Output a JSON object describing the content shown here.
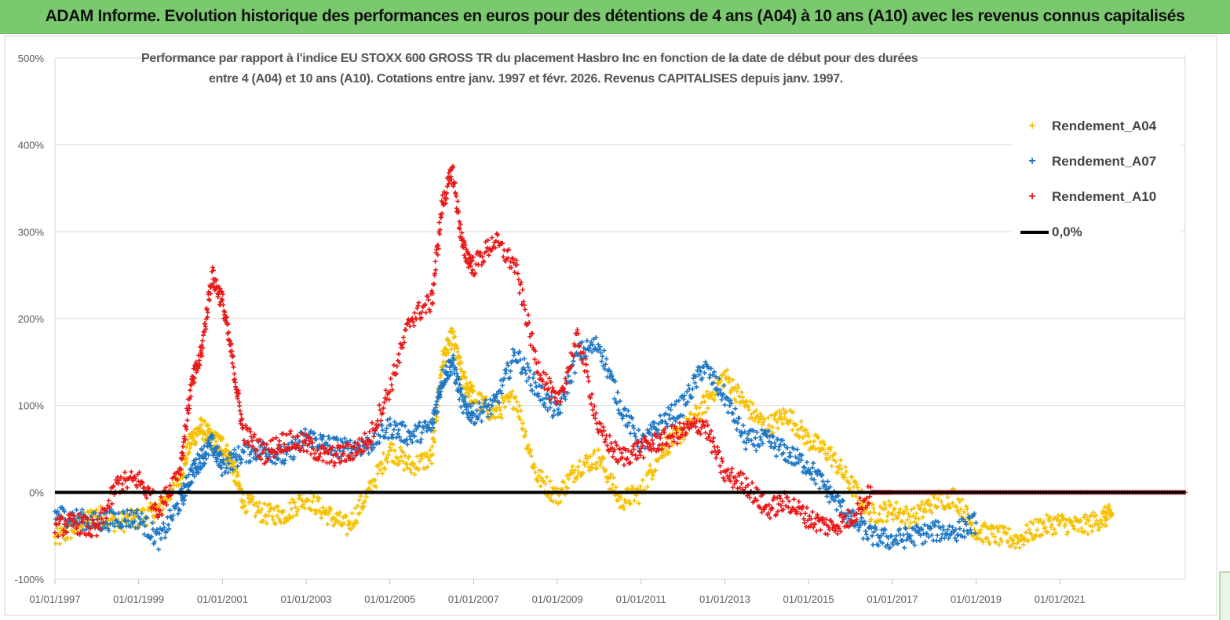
{
  "banner": {
    "text": "ADAM Informe. Evolution historique des performances en euros pour des détentions de 4 ans (A04) à 10 ans (A10) avec les revenus connus capitalisés"
  },
  "chart_data": {
    "type": "scatter",
    "title_line1": "Performance par rapport à l'indice EU STOXX 600 GROSS TR  du placement Hasbro Inc en fonction de la date de début pour des durées",
    "title_line2": "entre 4 (A04) et 10 ans (A10).  Cotations entre janv. 1997 et févr. 2026. Revenus  CAPITALISES depuis janv. 1997.",
    "xlabel": "",
    "ylabel": "",
    "x_range": [
      "1997-01-01",
      "2023-12-31"
    ],
    "ylim": [
      -100,
      500
    ],
    "y_ticks": [
      "500%",
      "400%",
      "300%",
      "200%",
      "100%",
      "0%",
      "-100%"
    ],
    "y_tick_values": [
      500,
      400,
      300,
      200,
      100,
      0,
      -100
    ],
    "x_ticks": [
      "01/01/1997",
      "01/01/1999",
      "01/01/2001",
      "01/01/2003",
      "01/01/2005",
      "01/01/2007",
      "01/01/2009",
      "01/01/2011",
      "01/01/2013",
      "01/01/2015",
      "01/01/2017",
      "01/01/2019",
      "01/01/2021"
    ],
    "x_tick_values": [
      "1997-01-01",
      "1999-01-01",
      "2001-01-01",
      "2003-01-01",
      "2005-01-01",
      "2007-01-01",
      "2009-01-01",
      "2011-01-01",
      "2013-01-01",
      "2015-01-01",
      "2017-01-01",
      "2019-01-01",
      "2021-01-01"
    ],
    "grid": "horizontal",
    "legend_position": "top-right",
    "series": [
      {
        "name": "Rendement_A04",
        "color": "#f5c000",
        "marker": "+",
        "points": [
          [
            "1997-01-01",
            -55
          ],
          [
            "1997-07-01",
            -40
          ],
          [
            "1998-01-01",
            -25
          ],
          [
            "1998-07-01",
            -35
          ],
          [
            "1999-01-01",
            -30
          ],
          [
            "1999-07-01",
            -20
          ],
          [
            "2000-01-01",
            20
          ],
          [
            "2000-04-01",
            60
          ],
          [
            "2000-07-01",
            75
          ],
          [
            "2000-10-01",
            60
          ],
          [
            "2001-01-01",
            55
          ],
          [
            "2001-04-01",
            30
          ],
          [
            "2001-07-01",
            -10
          ],
          [
            "2002-01-01",
            -25
          ],
          [
            "2002-07-01",
            -25
          ],
          [
            "2003-01-01",
            -5
          ],
          [
            "2003-07-01",
            -25
          ],
          [
            "2004-01-01",
            -40
          ],
          [
            "2004-07-01",
            0
          ],
          [
            "2005-01-01",
            50
          ],
          [
            "2005-07-01",
            30
          ],
          [
            "2006-01-01",
            40
          ],
          [
            "2006-04-01",
            150
          ],
          [
            "2006-07-01",
            180
          ],
          [
            "2006-10-01",
            130
          ],
          [
            "2007-01-01",
            110
          ],
          [
            "2007-07-01",
            90
          ],
          [
            "2008-01-01",
            110
          ],
          [
            "2008-07-01",
            20
          ],
          [
            "2009-01-01",
            -5
          ],
          [
            "2009-07-01",
            30
          ],
          [
            "2010-01-01",
            40
          ],
          [
            "2010-07-01",
            -10
          ],
          [
            "2011-01-01",
            0
          ],
          [
            "2011-07-01",
            50
          ],
          [
            "2012-01-01",
            70
          ],
          [
            "2012-07-01",
            100
          ],
          [
            "2013-01-01",
            135
          ],
          [
            "2013-07-01",
            100
          ],
          [
            "2014-01-01",
            75
          ],
          [
            "2014-07-01",
            90
          ],
          [
            "2015-01-01",
            60
          ],
          [
            "2015-07-01",
            45
          ],
          [
            "2016-01-01",
            10
          ],
          [
            "2016-07-01",
            -25
          ],
          [
            "2017-01-01",
            -20
          ],
          [
            "2017-07-01",
            -30
          ],
          [
            "2018-01-01",
            -10
          ],
          [
            "2018-07-01",
            -5
          ],
          [
            "2019-01-01",
            -45
          ],
          [
            "2019-07-01",
            -50
          ],
          [
            "2020-01-01",
            -55
          ],
          [
            "2020-07-01",
            -40
          ],
          [
            "2021-01-01",
            -35
          ],
          [
            "2021-07-01",
            -40
          ],
          [
            "2022-01-01",
            -30
          ],
          [
            "2022-04-01",
            -25
          ]
        ]
      },
      {
        "name": "Rendement_A07",
        "color": "#1f77c4",
        "marker": "+",
        "points": [
          [
            "1997-01-01",
            -25
          ],
          [
            "1997-07-01",
            -30
          ],
          [
            "1998-01-01",
            -35
          ],
          [
            "1998-07-01",
            -30
          ],
          [
            "1999-01-01",
            -30
          ],
          [
            "1999-07-01",
            -55
          ],
          [
            "2000-01-01",
            -10
          ],
          [
            "2000-04-01",
            20
          ],
          [
            "2000-07-01",
            40
          ],
          [
            "2000-10-01",
            55
          ],
          [
            "2001-01-01",
            30
          ],
          [
            "2001-07-01",
            45
          ],
          [
            "2002-01-01",
            50
          ],
          [
            "2002-07-01",
            40
          ],
          [
            "2003-01-01",
            65
          ],
          [
            "2003-07-01",
            55
          ],
          [
            "2004-01-01",
            50
          ],
          [
            "2004-07-01",
            55
          ],
          [
            "2005-01-01",
            75
          ],
          [
            "2005-07-01",
            65
          ],
          [
            "2006-01-01",
            75
          ],
          [
            "2006-04-01",
            130
          ],
          [
            "2006-07-01",
            150
          ],
          [
            "2006-10-01",
            100
          ],
          [
            "2007-01-01",
            90
          ],
          [
            "2007-07-01",
            100
          ],
          [
            "2008-01-01",
            160
          ],
          [
            "2008-07-01",
            120
          ],
          [
            "2009-01-01",
            90
          ],
          [
            "2009-07-01",
            160
          ],
          [
            "2010-01-01",
            170
          ],
          [
            "2010-07-01",
            100
          ],
          [
            "2011-01-01",
            55
          ],
          [
            "2011-07-01",
            80
          ],
          [
            "2012-01-01",
            100
          ],
          [
            "2012-07-01",
            145
          ],
          [
            "2013-01-01",
            110
          ],
          [
            "2013-07-01",
            60
          ],
          [
            "2014-01-01",
            60
          ],
          [
            "2014-07-01",
            45
          ],
          [
            "2015-01-01",
            30
          ],
          [
            "2015-07-01",
            0
          ],
          [
            "2016-01-01",
            -30
          ],
          [
            "2016-07-01",
            -50
          ],
          [
            "2017-01-01",
            -55
          ],
          [
            "2017-07-01",
            -50
          ],
          [
            "2018-01-01",
            -45
          ],
          [
            "2018-07-01",
            -45
          ],
          [
            "2019-01-01",
            -35
          ]
        ]
      },
      {
        "name": "Rendement_A10",
        "color": "#e81818",
        "marker": "+",
        "points": [
          [
            "1997-01-01",
            -40
          ],
          [
            "1997-07-01",
            -35
          ],
          [
            "1998-01-01",
            -45
          ],
          [
            "1998-07-01",
            10
          ],
          [
            "1999-01-01",
            15
          ],
          [
            "1999-07-01",
            -20
          ],
          [
            "2000-01-01",
            30
          ],
          [
            "2000-04-01",
            120
          ],
          [
            "2000-07-01",
            160
          ],
          [
            "2000-10-01",
            250
          ],
          [
            "2001-01-01",
            220
          ],
          [
            "2001-04-01",
            150
          ],
          [
            "2001-07-01",
            70
          ],
          [
            "2002-01-01",
            45
          ],
          [
            "2002-07-01",
            60
          ],
          [
            "2003-01-01",
            55
          ],
          [
            "2003-07-01",
            40
          ],
          [
            "2004-01-01",
            45
          ],
          [
            "2004-07-01",
            60
          ],
          [
            "2005-01-01",
            120
          ],
          [
            "2005-07-01",
            200
          ],
          [
            "2006-01-01",
            220
          ],
          [
            "2006-04-01",
            330
          ],
          [
            "2006-07-01",
            370
          ],
          [
            "2006-10-01",
            280
          ],
          [
            "2007-01-01",
            260
          ],
          [
            "2007-07-01",
            290
          ],
          [
            "2008-01-01",
            260
          ],
          [
            "2008-07-01",
            150
          ],
          [
            "2009-01-01",
            100
          ],
          [
            "2009-07-01",
            180
          ],
          [
            "2010-01-01",
            70
          ],
          [
            "2010-07-01",
            40
          ],
          [
            "2011-01-01",
            50
          ],
          [
            "2011-07-01",
            60
          ],
          [
            "2012-01-01",
            70
          ],
          [
            "2012-07-01",
            80
          ],
          [
            "2013-01-01",
            20
          ],
          [
            "2013-07-01",
            10
          ],
          [
            "2014-01-01",
            -20
          ],
          [
            "2014-07-01",
            -10
          ],
          [
            "2015-01-01",
            -30
          ],
          [
            "2015-07-01",
            -40
          ],
          [
            "2016-01-01",
            -30
          ],
          [
            "2016-07-01",
            0
          ],
          [
            "2017-01-01",
            0
          ],
          [
            "2018-01-01",
            0
          ],
          [
            "2019-01-01",
            0
          ],
          [
            "2020-01-01",
            0
          ],
          [
            "2021-01-01",
            0
          ],
          [
            "2022-01-01",
            0
          ],
          [
            "2023-01-01",
            0
          ],
          [
            "2023-12-31",
            0
          ]
        ]
      },
      {
        "name": "0,0%",
        "color": "#000000",
        "marker": "line",
        "points": [
          [
            "1997-01-01",
            0
          ],
          [
            "2023-12-31",
            0
          ]
        ]
      }
    ]
  },
  "legend": {
    "items": [
      {
        "label": "Rendement_A04",
        "color": "#f5c000"
      },
      {
        "label": "Rendement_A07",
        "color": "#1f77c4"
      },
      {
        "label": "Rendement_A10",
        "color": "#e81818"
      },
      {
        "label": "0,0%",
        "color": "#000000"
      }
    ]
  }
}
